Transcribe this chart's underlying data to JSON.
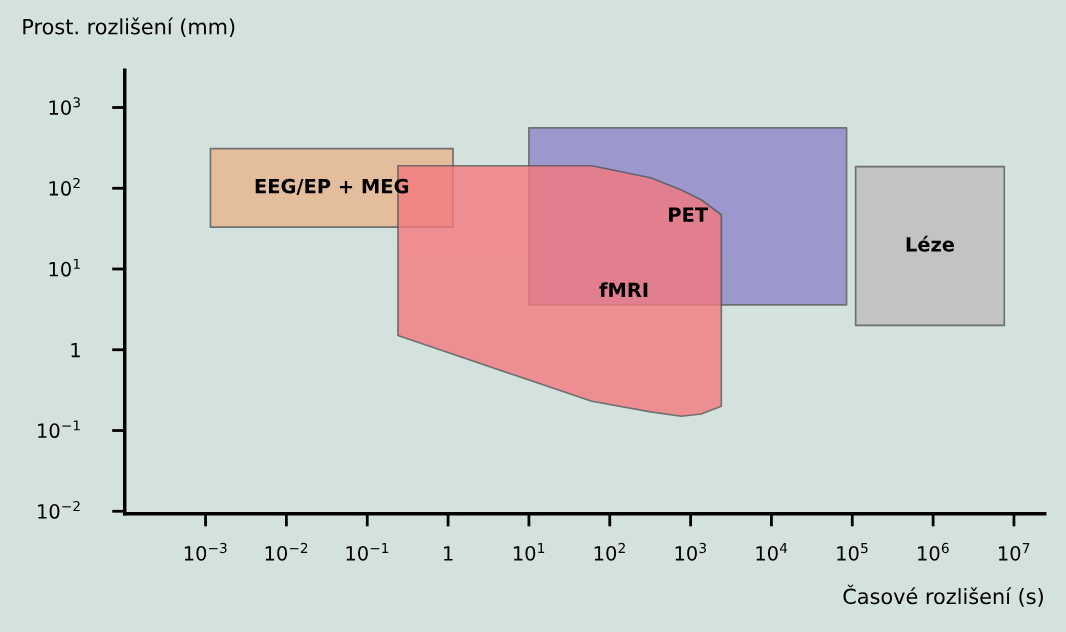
{
  "chart_data": {
    "type": "area",
    "log": "xy",
    "xlabel": "Časové rozlišení (s)",
    "ylabel": "Prost. rozlišení (mm)",
    "xlim": [
      0.0001,
      24000000
    ],
    "ylim": [
      0.0093,
      2900
    ],
    "xticks": [
      {
        "value": 0.001,
        "label": "10$^{−3}$"
      },
      {
        "value": 0.01,
        "label": "10$^{−2}$"
      },
      {
        "value": 0.1,
        "label": "10$^{−1}$"
      },
      1,
      {
        "value": 10,
        "label": "10$^{1}$"
      },
      {
        "value": 100,
        "label": "10$^{2}$"
      },
      {
        "value": 1000,
        "label": "10$^{3}$"
      },
      {
        "value": 10000,
        "label": "10$^{4}$"
      },
      {
        "value": 100000,
        "label": "10$^{5}$"
      },
      {
        "value": 1000000,
        "label": "10$^{6}$"
      },
      {
        "value": 10000000,
        "label": "10$^{7}$"
      }
    ],
    "yticks": [
      {
        "value": 0.01,
        "label": "10$^{−2}$"
      },
      {
        "value": 0.1,
        "label": "10$^{−1}$"
      },
      1,
      {
        "value": 10,
        "label": "10$^{1}$"
      },
      {
        "value": 100,
        "label": "10$^{2}$"
      },
      {
        "value": 1000,
        "label": "10$^{3}$"
      }
    ],
    "series": [
      {
        "name": "EEG/EP + MEG",
        "color": "#e9b48e",
        "x": [
          0.00115,
          1.15,
          1.15,
          0.00115
        ],
        "values": [
          33,
          33,
          310,
          310
        ]
      },
      {
        "name": "PET",
        "color": "#8e86c8",
        "x": [
          10,
          85000,
          85000,
          10
        ],
        "values": [
          3.6,
          3.6,
          560,
          560
        ]
      },
      {
        "name": "fMRI",
        "color": "#f47a80",
        "x": [
          0.24,
          60,
          320,
          770,
          1350,
          2400,
          2400,
          1350,
          770,
          320,
          60,
          0.24
        ],
        "values": [
          1.5,
          0.23,
          0.17,
          0.15,
          0.16,
          0.2,
          47,
          72,
          95,
          135,
          190,
          190
        ]
      },
      {
        "name": "Léze",
        "color": "#bdbdbd",
        "x": [
          110000,
          7600000,
          7600000,
          110000
        ],
        "values": [
          2.0,
          2.0,
          185,
          185
        ]
      }
    ]
  }
}
